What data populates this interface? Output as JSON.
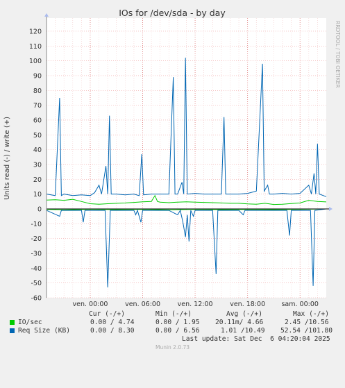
{
  "chart_data": {
    "type": "line",
    "title": "IOs for /dev/sda - by day",
    "ylabel": "Units read (-) / write (+)",
    "ylim": [
      -60,
      127
    ],
    "yticks": [
      -60,
      -50,
      -40,
      -30,
      -20,
      -10,
      0,
      10,
      20,
      30,
      40,
      50,
      60,
      70,
      80,
      90,
      100,
      110,
      120
    ],
    "xlim": [
      0,
      32
    ],
    "xticks": [
      {
        "x": 5,
        "label": "ven. 00:00"
      },
      {
        "x": 11,
        "label": "ven. 06:00"
      },
      {
        "x": 17,
        "label": "ven. 12:00"
      },
      {
        "x": 23,
        "label": "ven. 18:00"
      },
      {
        "x": 29,
        "label": "sam. 00:00"
      }
    ],
    "grid": true,
    "side_text": "RRDTOOL / TOBI OETIKER",
    "series": [
      {
        "name": "IO/sec",
        "color": "#00cc00",
        "positive": [
          [
            0,
            6
          ],
          [
            1,
            6.2
          ],
          [
            2,
            5.8
          ],
          [
            3,
            6.5
          ],
          [
            4,
            5
          ],
          [
            5,
            3.5
          ],
          [
            6,
            3.2
          ],
          [
            7,
            3.5
          ],
          [
            8,
            3.8
          ],
          [
            9,
            4
          ],
          [
            10,
            4.4
          ],
          [
            11,
            4.8
          ],
          [
            12,
            5
          ],
          [
            12.4,
            9
          ],
          [
            12.7,
            5
          ],
          [
            13,
            4.6
          ],
          [
            14,
            4.2
          ],
          [
            15,
            4.6
          ],
          [
            16,
            4.8
          ],
          [
            17,
            4.6
          ],
          [
            18,
            4.4
          ],
          [
            19,
            4.2
          ],
          [
            20,
            4
          ],
          [
            21,
            3.8
          ],
          [
            22,
            3.8
          ],
          [
            23,
            3.4
          ],
          [
            24,
            3.2
          ],
          [
            25,
            3.8
          ],
          [
            26,
            3
          ],
          [
            27,
            3.2
          ],
          [
            28,
            3.6
          ],
          [
            29,
            4
          ],
          [
            30,
            5.8
          ],
          [
            31,
            5
          ],
          [
            32,
            4.74
          ]
        ],
        "negative": [
          [
            0,
            -0.4
          ],
          [
            2,
            -0.6
          ],
          [
            5,
            -0.3
          ],
          [
            8,
            -0.5
          ],
          [
            11,
            -0.3
          ],
          [
            14,
            -0.6
          ],
          [
            17,
            -0.3
          ],
          [
            20,
            -0.5
          ],
          [
            23,
            -0.4
          ],
          [
            26,
            -0.5
          ],
          [
            29,
            -0.3
          ],
          [
            32,
            0
          ]
        ]
      },
      {
        "name": "Req Size (KB)",
        "color": "#0066b3",
        "positive": [
          [
            0,
            10
          ],
          [
            1,
            9
          ],
          [
            1.5,
            75
          ],
          [
            1.7,
            9
          ],
          [
            2,
            10
          ],
          [
            3,
            9
          ],
          [
            4,
            9.5
          ],
          [
            5,
            9
          ],
          [
            5.5,
            11
          ],
          [
            6,
            16
          ],
          [
            6.3,
            10
          ],
          [
            6.8,
            29
          ],
          [
            7,
            10
          ],
          [
            7.2,
            63
          ],
          [
            7.4,
            10
          ],
          [
            8,
            10
          ],
          [
            9,
            9.5
          ],
          [
            10,
            10
          ],
          [
            10.6,
            9
          ],
          [
            10.9,
            37
          ],
          [
            11.1,
            9.5
          ],
          [
            12,
            10
          ],
          [
            13,
            10
          ],
          [
            14,
            10
          ],
          [
            14.5,
            89
          ],
          [
            14.7,
            10
          ],
          [
            15,
            10
          ],
          [
            15.5,
            18
          ],
          [
            15.7,
            10
          ],
          [
            15.9,
            102
          ],
          [
            16.1,
            10
          ],
          [
            17,
            10.5
          ],
          [
            18,
            10
          ],
          [
            19,
            10
          ],
          [
            20,
            10
          ],
          [
            20.3,
            62
          ],
          [
            20.5,
            10
          ],
          [
            21,
            10
          ],
          [
            22,
            10
          ],
          [
            23,
            10.5
          ],
          [
            24,
            12
          ],
          [
            24.7,
            98
          ],
          [
            24.9,
            12
          ],
          [
            25.3,
            16
          ],
          [
            25.5,
            10
          ],
          [
            26,
            10
          ],
          [
            27,
            10.5
          ],
          [
            28,
            10
          ],
          [
            29,
            10.5
          ],
          [
            30,
            16
          ],
          [
            30.3,
            10
          ],
          [
            30.6,
            24
          ],
          [
            30.8,
            10
          ],
          [
            31,
            44
          ],
          [
            31.2,
            10
          ],
          [
            32,
            8.3
          ]
        ],
        "negative": [
          [
            0,
            -1
          ],
          [
            1.5,
            -5
          ],
          [
            1.7,
            -1
          ],
          [
            4,
            -1
          ],
          [
            4.2,
            -9
          ],
          [
            4.4,
            -1
          ],
          [
            6.7,
            -1
          ],
          [
            7,
            -53
          ],
          [
            7.3,
            -1
          ],
          [
            10,
            -1
          ],
          [
            10.2,
            -4
          ],
          [
            10.4,
            -1
          ],
          [
            10.8,
            -9
          ],
          [
            11,
            -1
          ],
          [
            14,
            -1
          ],
          [
            15,
            -4
          ],
          [
            15.3,
            -1
          ],
          [
            15.6,
            -9
          ],
          [
            15.9,
            -19
          ],
          [
            16.1,
            -4
          ],
          [
            16.3,
            -22
          ],
          [
            16.5,
            -1
          ],
          [
            16.8,
            -5
          ],
          [
            17,
            -1
          ],
          [
            19,
            -1
          ],
          [
            19.4,
            -44
          ],
          [
            19.6,
            -1
          ],
          [
            22,
            -1
          ],
          [
            22.5,
            -4
          ],
          [
            22.7,
            -1
          ],
          [
            27.5,
            -1
          ],
          [
            27.8,
            -18
          ],
          [
            28,
            -1
          ],
          [
            30.2,
            -1
          ],
          [
            30.5,
            -52
          ],
          [
            30.7,
            -1
          ],
          [
            32,
            0
          ]
        ]
      }
    ]
  },
  "legend": {
    "headers": [
      "Cur (-/+)",
      "Min (-/+)",
      "Avg (-/+)",
      "Max (-/+)"
    ],
    "rows": [
      {
        "label": "IO/sec",
        "color": "#00cc00",
        "cur": "0.00 / 4.74",
        "min": "0.00 / 1.95",
        "avg": "20.11m/ 4.66",
        "max": "2.45 /10.56"
      },
      {
        "label": "Req Size (KB)",
        "color": "#0066b3",
        "cur": "0.00 / 8.30",
        "min": "0.00 / 6.56",
        "avg": "1.01 /10.49",
        "max": "52.54 /101.80"
      }
    ],
    "last_update": "Last update: Sat Dec  6 04:20:04 2025"
  },
  "footer": "Munin 2.0.73"
}
